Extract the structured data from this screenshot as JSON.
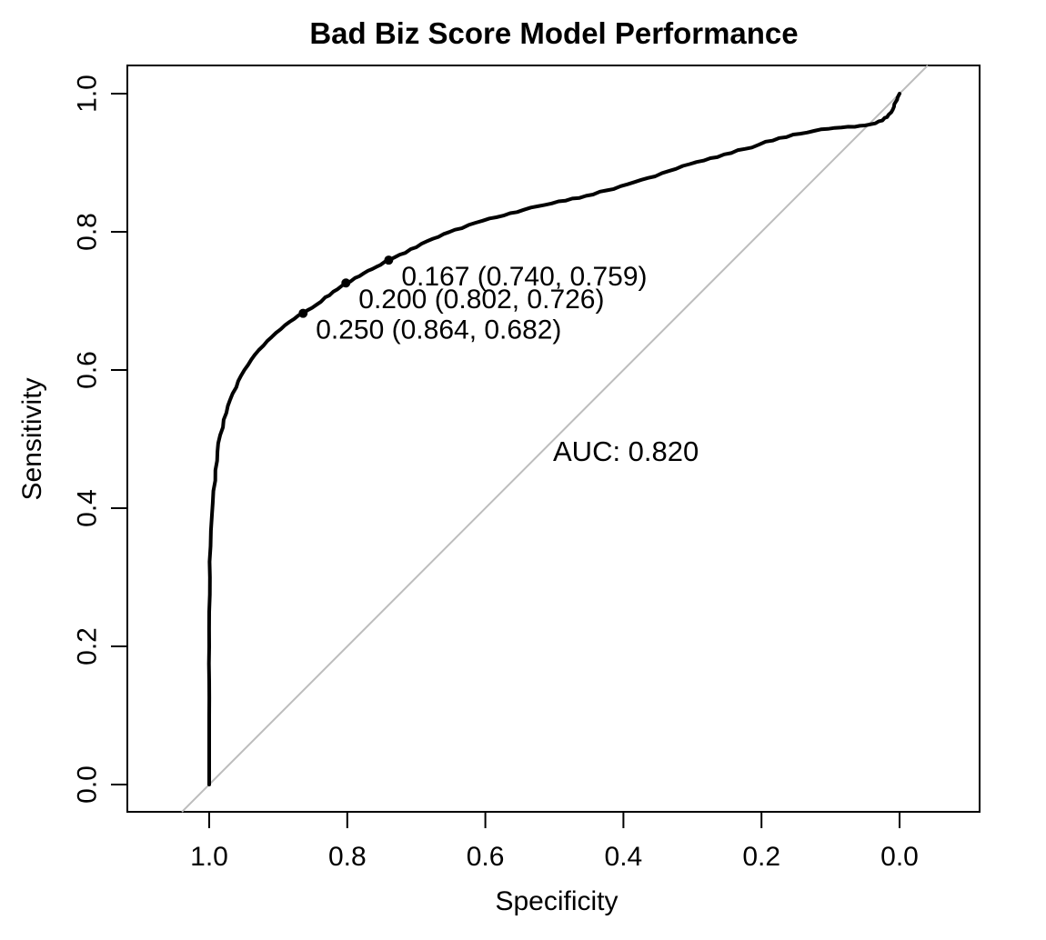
{
  "chart_data": {
    "type": "line",
    "title": "Bad Biz Score Model Performance",
    "xlabel": "Specificity",
    "ylabel": "Sensitivity",
    "x_ticks": [
      "1.0",
      "0.8",
      "0.6",
      "0.4",
      "0.2",
      "0.0"
    ],
    "x_tick_values": [
      1.0,
      0.8,
      0.6,
      0.4,
      0.2,
      0.0
    ],
    "y_ticks": [
      "0.0",
      "0.2",
      "0.4",
      "0.6",
      "0.8",
      "1.0"
    ],
    "y_tick_values": [
      0.0,
      0.2,
      0.4,
      0.6,
      0.8,
      1.0
    ],
    "xlim": [
      1.0,
      0.0
    ],
    "ylim": [
      0.0,
      1.0
    ],
    "x_axis_reversed": true,
    "grid": false,
    "legend": "none",
    "auc": 0.82,
    "auc_text": "AUC: 0.820",
    "diagonal": {
      "type": "identity",
      "from": [
        1.0,
        0.0
      ],
      "to": [
        0.0,
        1.0
      ]
    },
    "threshold_points": [
      {
        "threshold": "0.167",
        "specificity": 0.74,
        "sensitivity": 0.759,
        "label": "0.167 (0.740, 0.759)"
      },
      {
        "threshold": "0.200",
        "specificity": 0.802,
        "sensitivity": 0.726,
        "label": "0.200 (0.802, 0.726)"
      },
      {
        "threshold": "0.250",
        "specificity": 0.864,
        "sensitivity": 0.682,
        "label": "0.250 (0.864, 0.682)"
      }
    ],
    "roc_curve": [
      [
        1.0,
        0.0
      ],
      [
        1.0,
        0.05
      ],
      [
        1.0,
        0.1
      ],
      [
        1.0,
        0.15
      ],
      [
        1.0,
        0.2
      ],
      [
        1.0,
        0.25
      ],
      [
        0.999,
        0.3
      ],
      [
        0.998,
        0.345
      ],
      [
        0.996,
        0.39
      ],
      [
        0.994,
        0.425
      ],
      [
        0.991,
        0.455
      ],
      [
        0.988,
        0.482
      ],
      [
        0.984,
        0.506
      ],
      [
        0.979,
        0.528
      ],
      [
        0.973,
        0.548
      ],
      [
        0.966,
        0.566
      ],
      [
        0.958,
        0.584
      ],
      [
        0.949,
        0.6
      ],
      [
        0.939,
        0.615
      ],
      [
        0.928,
        0.629
      ],
      [
        0.916,
        0.642
      ],
      [
        0.903,
        0.654
      ],
      [
        0.89,
        0.665
      ],
      [
        0.877,
        0.674
      ],
      [
        0.864,
        0.682
      ],
      [
        0.851,
        0.69
      ],
      [
        0.838,
        0.699
      ],
      [
        0.826,
        0.708
      ],
      [
        0.814,
        0.717
      ],
      [
        0.802,
        0.726
      ],
      [
        0.789,
        0.733
      ],
      [
        0.776,
        0.74
      ],
      [
        0.764,
        0.746
      ],
      [
        0.752,
        0.752
      ],
      [
        0.74,
        0.759
      ],
      [
        0.724,
        0.767
      ],
      [
        0.708,
        0.775
      ],
      [
        0.692,
        0.783
      ],
      [
        0.676,
        0.79
      ],
      [
        0.66,
        0.797
      ],
      [
        0.644,
        0.803
      ],
      [
        0.624,
        0.81
      ],
      [
        0.604,
        0.816
      ],
      [
        0.584,
        0.821
      ],
      [
        0.564,
        0.827
      ],
      [
        0.544,
        0.832
      ],
      [
        0.524,
        0.837
      ],
      [
        0.504,
        0.841
      ],
      [
        0.484,
        0.845
      ],
      [
        0.464,
        0.849
      ],
      [
        0.444,
        0.854
      ],
      [
        0.424,
        0.86
      ],
      [
        0.404,
        0.866
      ],
      [
        0.384,
        0.872
      ],
      [
        0.364,
        0.878
      ],
      [
        0.344,
        0.885
      ],
      [
        0.324,
        0.891
      ],
      [
        0.304,
        0.898
      ],
      [
        0.284,
        0.903
      ],
      [
        0.264,
        0.908
      ],
      [
        0.244,
        0.914
      ],
      [
        0.224,
        0.92
      ],
      [
        0.204,
        0.926
      ],
      [
        0.184,
        0.932
      ],
      [
        0.164,
        0.937
      ],
      [
        0.144,
        0.942
      ],
      [
        0.124,
        0.946
      ],
      [
        0.104,
        0.949
      ],
      [
        0.084,
        0.951
      ],
      [
        0.065,
        0.952
      ],
      [
        0.05,
        0.954
      ],
      [
        0.035,
        0.957
      ],
      [
        0.025,
        0.961
      ],
      [
        0.018,
        0.966
      ],
      [
        0.012,
        0.973
      ],
      [
        0.008,
        0.981
      ],
      [
        0.005,
        0.989
      ],
      [
        0.003,
        0.994
      ],
      [
        0.001,
        0.998
      ],
      [
        0.0,
        1.0
      ]
    ]
  },
  "colors": {
    "curve": "#000000",
    "diagonal": "#bdbdbd",
    "box": "#000000",
    "text": "#000000",
    "background": "#ffffff"
  }
}
